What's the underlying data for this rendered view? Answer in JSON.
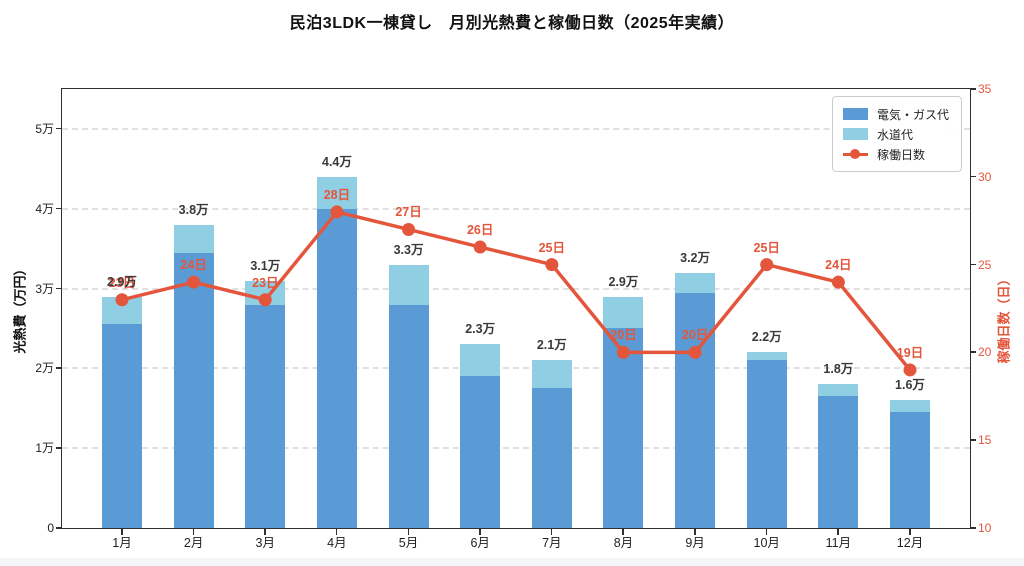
{
  "title": "民泊3LDK一棟貸し　月別光熱費と稼働日数（2025年実績）",
  "colors": {
    "electric_gas": "#5B9BD5",
    "water": "#90CEE4",
    "line": "#E4563C",
    "grid": "#E0E0E0",
    "spine": "#2F2F2F",
    "bar_label": "#3A3A3A",
    "tick_label": "#1F1F1F",
    "background": "#FFFFFF"
  },
  "chart_data": {
    "type": "bar",
    "subtype": "stacked-bars-with-line-overlay",
    "title": "民泊3LDK一棟貸し　月別光熱費と稼働日数（2025年実績）",
    "categories": [
      "1月",
      "2月",
      "3月",
      "4月",
      "5月",
      "6月",
      "7月",
      "8月",
      "9月",
      "10月",
      "11月",
      "12月"
    ],
    "series": [
      {
        "name": "電気・ガス代",
        "type": "bar",
        "stack": "utilities",
        "axis": "left",
        "color": "#5B9BD5",
        "values": [
          2.55,
          3.45,
          2.8,
          4.0,
          2.8,
          1.9,
          1.75,
          2.5,
          2.95,
          2.1,
          1.65,
          1.45
        ]
      },
      {
        "name": "水道代",
        "type": "bar",
        "stack": "utilities",
        "axis": "left",
        "color": "#90CEE4",
        "values": [
          0.35,
          0.35,
          0.3,
          0.4,
          0.5,
          0.4,
          0.35,
          0.4,
          0.25,
          0.1,
          0.15,
          0.15
        ]
      },
      {
        "name": "稼働日数",
        "type": "line",
        "axis": "right",
        "color": "#E4563C",
        "marker": "circle",
        "values": [
          23,
          24,
          23,
          28,
          27,
          26,
          25,
          20,
          20,
          25,
          24,
          19
        ]
      }
    ],
    "bar_totals": [
      2.9,
      3.8,
      3.1,
      4.4,
      3.3,
      2.3,
      2.1,
      2.9,
      3.2,
      2.2,
      1.8,
      1.6
    ],
    "bar_total_labels": [
      "2.9万",
      "3.8万",
      "3.1万",
      "4.4万",
      "3.3万",
      "2.3万",
      "2.1万",
      "2.9万",
      "3.2万",
      "2.2万",
      "1.8万",
      "1.6万"
    ],
    "line_point_labels": [
      "23日",
      "24日",
      "23日",
      "28日",
      "27日",
      "26日",
      "25日",
      "20日",
      "20日",
      "25日",
      "24日",
      "19日"
    ],
    "left_axis": {
      "label": "光熱費（万円）",
      "tick_values": [
        0,
        1,
        2,
        3,
        4,
        5
      ],
      "tick_labels": [
        "0",
        "1万",
        "2万",
        "3万",
        "4万",
        "5万"
      ],
      "range": [
        0,
        5.5
      ]
    },
    "right_axis": {
      "label": "稼働日数（日）",
      "tick_values": [
        10,
        15,
        20,
        25,
        30,
        35
      ],
      "tick_labels": [
        "10",
        "15",
        "20",
        "25",
        "30",
        "35"
      ],
      "range": [
        10,
        35
      ]
    },
    "legend": {
      "position": "upper-right",
      "items": [
        "電気・ガス代",
        "水道代",
        "稼働日数"
      ]
    },
    "grid": "horizontal-dashed"
  }
}
